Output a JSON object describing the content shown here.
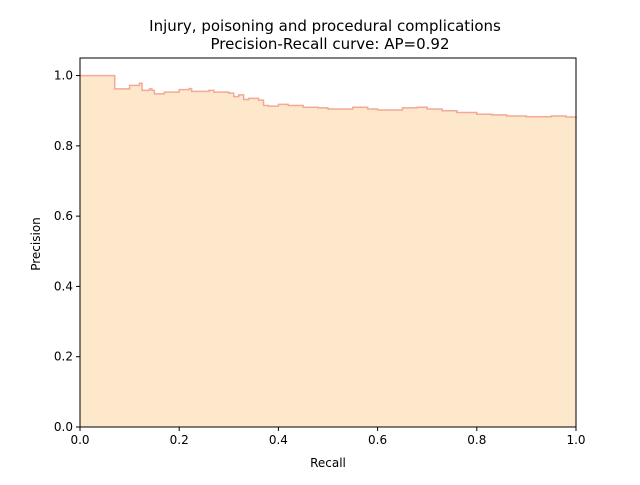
{
  "chart_data": {
    "type": "area",
    "title": "Injury, poisoning and procedural complications",
    "subtitle": "Precision-Recall curve: AP=0.92",
    "xlabel": "Recall",
    "ylabel": "Precision",
    "xlim": [
      0.0,
      1.0
    ],
    "ylim": [
      0.0,
      1.05
    ],
    "grid": false,
    "x_ticks": [
      "0.0",
      "0.2",
      "0.4",
      "0.6",
      "0.8",
      "1.0"
    ],
    "y_ticks": [
      "0.0",
      "0.2",
      "0.4",
      "0.6",
      "0.8",
      "1.0"
    ],
    "colors": {
      "fill": "#fde8cb",
      "line": "#f4a898"
    },
    "series": [
      {
        "recall": [
          0.0,
          0.07,
          0.07,
          0.1,
          0.12,
          0.125,
          0.14,
          0.145,
          0.15,
          0.17,
          0.2,
          0.22,
          0.225,
          0.26,
          0.27,
          0.3,
          0.31,
          0.32,
          0.33,
          0.34,
          0.36,
          0.37,
          0.38,
          0.4,
          0.42,
          0.45,
          0.48,
          0.5,
          0.55,
          0.58,
          0.6,
          0.65,
          0.68,
          0.7,
          0.73,
          0.76,
          0.8,
          0.83,
          0.86,
          0.9,
          0.95,
          0.98,
          1.0
        ],
        "precision": [
          1.0,
          1.0,
          0.962,
          0.972,
          0.978,
          0.958,
          0.962,
          0.958,
          0.948,
          0.953,
          0.96,
          0.963,
          0.955,
          0.958,
          0.953,
          0.95,
          0.94,
          0.945,
          0.932,
          0.935,
          0.93,
          0.915,
          0.913,
          0.918,
          0.915,
          0.91,
          0.908,
          0.905,
          0.91,
          0.905,
          0.902,
          0.908,
          0.91,
          0.905,
          0.9,
          0.895,
          0.89,
          0.888,
          0.885,
          0.883,
          0.885,
          0.882,
          0.878
        ]
      }
    ]
  }
}
